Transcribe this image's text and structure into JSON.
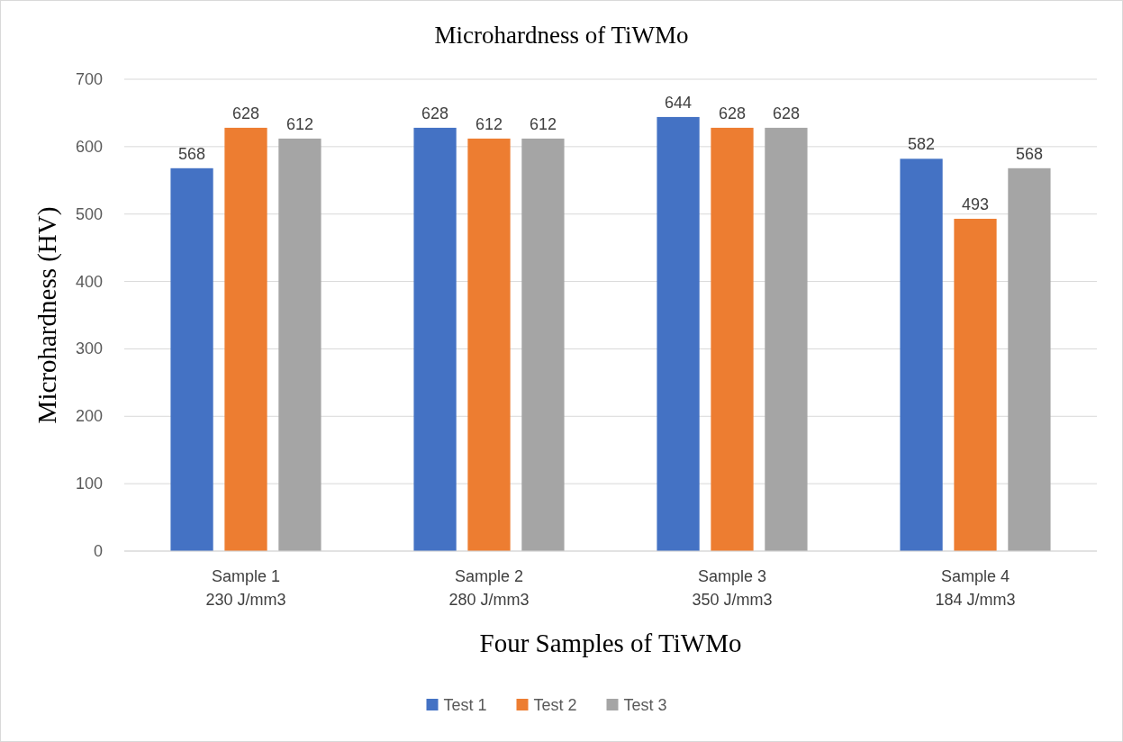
{
  "chart_data": {
    "type": "bar",
    "title": "Microhardness of TiWMo",
    "xlabel": "Four Samples of TiWMo",
    "ylabel": "Microhardness (HV)",
    "categories": [
      "Sample 1\n230 J/mm3",
      "Sample 2\n280 J/mm3",
      "Sample 3\n350 J/mm3",
      "Sample 4\n184 J/mm3"
    ],
    "series": [
      {
        "name": "Test 1",
        "color": "#4472c4",
        "values": [
          568,
          628,
          644,
          582
        ]
      },
      {
        "name": "Test 2",
        "color": "#ed7d31",
        "values": [
          628,
          612,
          628,
          493
        ]
      },
      {
        "name": "Test 3",
        "color": "#a5a5a5",
        "values": [
          612,
          612,
          628,
          568
        ]
      }
    ],
    "ylim": [
      0,
      700
    ],
    "yticks": [
      0,
      100,
      200,
      300,
      400,
      500,
      600,
      700
    ],
    "grid": "y",
    "legend": "bottom",
    "data_labels": true
  }
}
